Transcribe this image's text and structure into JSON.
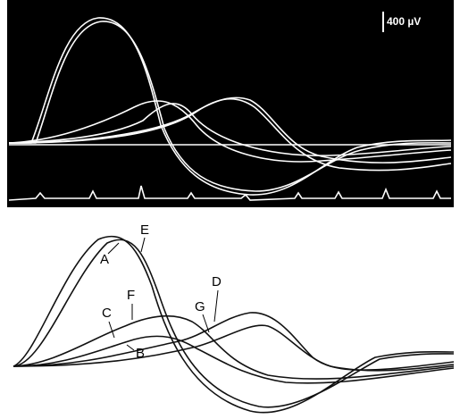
{
  "scale_bar": {
    "label": "400 µV"
  },
  "labels": [
    {
      "text": "A"
    },
    {
      "text": "E"
    },
    {
      "text": "C"
    },
    {
      "text": "F"
    },
    {
      "text": "G"
    },
    {
      "text": "D"
    },
    {
      "text": "B"
    }
  ]
}
